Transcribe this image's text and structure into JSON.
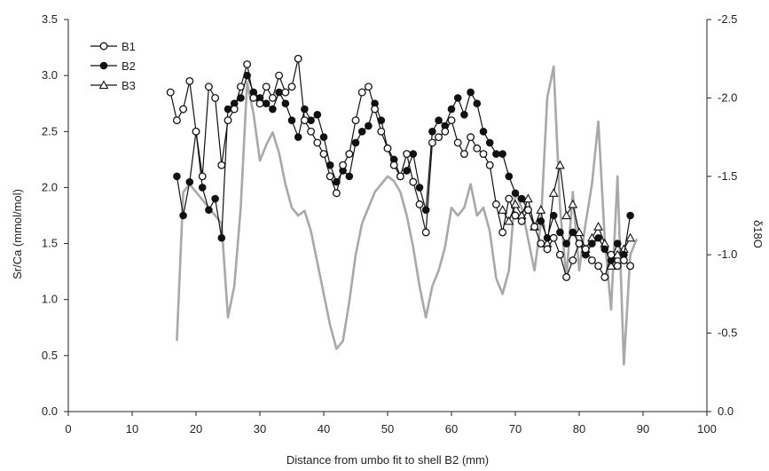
{
  "chart_data": {
    "type": "line",
    "xlabel": "Distance from umbo fit to shell B2 (mm)",
    "ylabel": "Sr/Ca (mmol/mol)",
    "y2label": "δ18O",
    "xlim": [
      0,
      100
    ],
    "ylim": [
      0,
      3.5
    ],
    "y2lim": [
      0,
      -2.5
    ],
    "y2_reversed": true,
    "x_ticks": [
      "0",
      "10",
      "20",
      "30",
      "40",
      "50",
      "60",
      "70",
      "80",
      "90",
      "100"
    ],
    "y_ticks": [
      "0.0",
      "0.5",
      "1.0",
      "1.5",
      "2.0",
      "2.5",
      "3.0",
      "3.5"
    ],
    "y2_ticks": [
      "0.0",
      "-0.5",
      "-1.0",
      "-1.5",
      "-2.0",
      "-2.5"
    ],
    "grid": false,
    "legend_position": "top-left",
    "colors": {
      "B1": "#111111",
      "B2": "#111111",
      "B3": "#111111",
      "d18O": "#a8a8a8"
    },
    "series": [
      {
        "name": "B1",
        "marker": "open-circle",
        "axis": "left",
        "x": [
          16,
          17,
          18,
          19,
          20,
          21,
          22,
          23,
          24,
          25,
          26,
          27,
          28,
          29,
          30,
          31,
          32,
          33,
          34,
          35,
          36,
          37,
          38,
          39,
          40,
          41,
          42,
          43,
          44,
          45,
          46,
          47,
          48,
          49,
          50,
          51,
          52,
          53,
          54,
          55,
          56,
          57,
          58,
          59,
          60,
          61,
          62,
          63,
          64,
          65,
          66,
          67,
          68,
          69,
          70,
          71,
          72,
          73,
          74,
          75,
          76,
          77,
          78,
          79,
          80,
          81,
          82,
          83,
          84,
          85,
          86,
          87,
          88
        ],
        "y": [
          2.85,
          2.6,
          2.7,
          2.95,
          2.5,
          2.1,
          2.9,
          2.8,
          2.2,
          2.6,
          2.7,
          2.9,
          3.1,
          2.8,
          2.75,
          2.9,
          2.8,
          3.0,
          2.85,
          2.9,
          3.15,
          2.6,
          2.5,
          2.4,
          2.3,
          2.1,
          1.95,
          2.2,
          2.3,
          2.6,
          2.85,
          2.9,
          2.7,
          2.5,
          2.35,
          2.2,
          2.1,
          2.3,
          2.05,
          1.85,
          1.6,
          2.4,
          2.45,
          2.5,
          2.6,
          2.4,
          2.3,
          2.45,
          2.35,
          2.3,
          2.2,
          1.85,
          1.6,
          1.9,
          1.75,
          1.7,
          1.8,
          1.65,
          1.5,
          1.45,
          1.55,
          1.4,
          1.2,
          1.35,
          1.5,
          1.45,
          1.35,
          1.3,
          1.2,
          1.4,
          1.3,
          1.35,
          1.3
        ]
      },
      {
        "name": "B2",
        "marker": "filled-circle",
        "axis": "left",
        "x": [
          17,
          18,
          19,
          20,
          21,
          22,
          23,
          24,
          25,
          26,
          27,
          28,
          29,
          30,
          31,
          32,
          33,
          34,
          35,
          36,
          37,
          38,
          39,
          40,
          41,
          42,
          43,
          44,
          45,
          46,
          47,
          48,
          49,
          50,
          51,
          52,
          53,
          54,
          55,
          56,
          57,
          58,
          59,
          60,
          61,
          62,
          63,
          64,
          65,
          66,
          67,
          68,
          69,
          70,
          71,
          72,
          73,
          74,
          75,
          76,
          77,
          78,
          79,
          80,
          81,
          82,
          83,
          84,
          85,
          86,
          87,
          88
        ],
        "y": [
          2.1,
          1.75,
          2.05,
          2.5,
          2.0,
          1.8,
          1.9,
          1.55,
          2.7,
          2.75,
          2.8,
          3.0,
          2.85,
          2.8,
          2.75,
          2.7,
          2.85,
          2.75,
          2.6,
          2.45,
          2.7,
          2.6,
          2.65,
          2.45,
          2.2,
          2.05,
          2.15,
          2.1,
          2.4,
          2.5,
          2.55,
          2.75,
          2.6,
          2.35,
          2.25,
          2.1,
          2.15,
          2.3,
          2.0,
          1.8,
          2.5,
          2.6,
          2.55,
          2.7,
          2.8,
          2.65,
          2.85,
          2.75,
          2.5,
          2.4,
          2.3,
          2.3,
          2.1,
          1.95,
          1.9,
          1.8,
          1.65,
          1.7,
          1.55,
          1.75,
          1.6,
          1.5,
          1.6,
          1.5,
          1.4,
          1.5,
          1.55,
          1.45,
          1.35,
          1.5,
          1.4,
          1.75
        ]
      },
      {
        "name": "B3",
        "marker": "open-triangle",
        "axis": "left",
        "x": [
          68,
          69,
          70,
          71,
          72,
          73,
          74,
          75,
          76,
          77,
          78,
          79,
          80,
          81,
          82,
          83,
          84,
          85,
          86,
          87,
          88
        ],
        "y": [
          1.8,
          1.7,
          1.85,
          1.75,
          1.9,
          1.65,
          1.8,
          1.5,
          1.95,
          2.2,
          1.75,
          1.85,
          1.6,
          1.45,
          1.55,
          1.65,
          1.5,
          1.3,
          1.4,
          1.45,
          1.55
        ]
      },
      {
        "name": "",
        "marker": "none",
        "axis": "right",
        "x": [
          17,
          18,
          19,
          20,
          21,
          22,
          23,
          24,
          25,
          26,
          27,
          28,
          29,
          30,
          31,
          32,
          33,
          34,
          35,
          36,
          37,
          38,
          39,
          40,
          41,
          42,
          43,
          44,
          45,
          46,
          47,
          48,
          49,
          50,
          51,
          52,
          53,
          54,
          55,
          56,
          57,
          58,
          59,
          60,
          61,
          62,
          63,
          64,
          65,
          66,
          67,
          68,
          69,
          70,
          71,
          72,
          73,
          74,
          75,
          76,
          77,
          78,
          79,
          80,
          81,
          82,
          83,
          84,
          85,
          86,
          87,
          88,
          89
        ],
        "y": [
          -0.45,
          -1.4,
          -1.45,
          -1.4,
          -1.35,
          -1.3,
          -1.25,
          -1.2,
          -0.6,
          -0.8,
          -1.3,
          -2.1,
          -1.9,
          -1.6,
          -1.7,
          -1.78,
          -1.65,
          -1.45,
          -1.3,
          -1.25,
          -1.28,
          -1.15,
          -0.95,
          -0.75,
          -0.55,
          -0.4,
          -0.45,
          -0.7,
          -1.0,
          -1.2,
          -1.3,
          -1.4,
          -1.45,
          -1.5,
          -1.47,
          -1.4,
          -1.25,
          -1.05,
          -0.8,
          -0.6,
          -0.8,
          -0.9,
          -1.05,
          -1.3,
          -1.25,
          -1.3,
          -1.45,
          -1.25,
          -1.3,
          -1.15,
          -0.85,
          -0.75,
          -0.9,
          -1.4,
          -1.3,
          -1.1,
          -0.9,
          -1.2,
          -2.0,
          -2.2,
          -1.3,
          -0.85,
          -1.4,
          -0.9,
          -1.2,
          -1.45,
          -1.85,
          -1.1,
          -0.65,
          -1.5,
          -0.3,
          -1.0,
          -1.1
        ]
      }
    ]
  }
}
